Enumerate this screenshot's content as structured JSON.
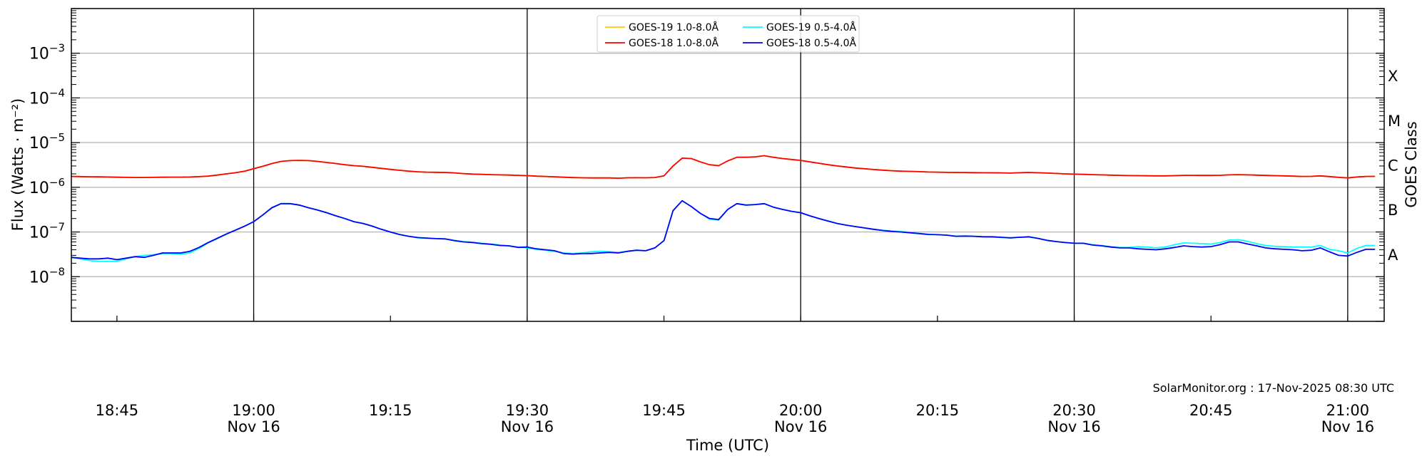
{
  "chart_data": {
    "type": "line",
    "title": "",
    "xlabel": "Time (UTC)",
    "ylabel": "Flux (Watts · m⁻²)",
    "y2label": "GOES Class",
    "yscale": "log",
    "ylim": [
      1e-09,
      0.01
    ],
    "xlim": [
      "18:40",
      "21:04"
    ],
    "grid": "horizontal at decades; black vertical lines every 30 min",
    "legend_placement": "top-center",
    "y_ticks": [
      {
        "value": 0.001,
        "label": "10",
        "exp": "−3"
      },
      {
        "value": 0.0001,
        "label": "10",
        "exp": "−4"
      },
      {
        "value": 1e-05,
        "label": "10",
        "exp": "−5"
      },
      {
        "value": 1e-06,
        "label": "10",
        "exp": "−6"
      },
      {
        "value": 1e-07,
        "label": "10",
        "exp": "−7"
      },
      {
        "value": 1e-08,
        "label": "10",
        "exp": "−8"
      }
    ],
    "x_ticks": [
      {
        "time": "18:45",
        "label": "18:45",
        "sub": ""
      },
      {
        "time": "19:00",
        "label": "19:00",
        "sub": "Nov 16"
      },
      {
        "time": "19:15",
        "label": "19:15",
        "sub": ""
      },
      {
        "time": "19:30",
        "label": "19:30",
        "sub": "Nov 16"
      },
      {
        "time": "19:45",
        "label": "19:45",
        "sub": ""
      },
      {
        "time": "20:00",
        "label": "20:00",
        "sub": "Nov 16"
      },
      {
        "time": "20:15",
        "label": "20:15",
        "sub": ""
      },
      {
        "time": "20:30",
        "label": "20:30",
        "sub": "Nov 16"
      },
      {
        "time": "20:45",
        "label": "20:45",
        "sub": ""
      },
      {
        "time": "21:00",
        "label": "21:00",
        "sub": "Nov 16"
      }
    ],
    "class_labels": [
      {
        "label": "X",
        "lo": 0.0001,
        "hi": 0.001
      },
      {
        "label": "M",
        "lo": 1e-05,
        "hi": 0.0001
      },
      {
        "label": "C",
        "lo": 1e-06,
        "hi": 1e-05
      },
      {
        "label": "B",
        "lo": 1e-07,
        "hi": 1e-06
      },
      {
        "label": "A",
        "lo": 1e-08,
        "hi": 1e-07
      }
    ],
    "annotation": "SolarMonitor.org : 17-Nov-2025 08:30 UTC",
    "x": [
      "18:40",
      "18:41",
      "18:42",
      "18:43",
      "18:44",
      "18:45",
      "18:46",
      "18:47",
      "18:48",
      "18:49",
      "18:50",
      "18:51",
      "18:52",
      "18:53",
      "18:54",
      "18:55",
      "18:56",
      "18:57",
      "18:58",
      "18:59",
      "19:00",
      "19:01",
      "19:02",
      "19:03",
      "19:04",
      "19:05",
      "19:06",
      "19:07",
      "19:08",
      "19:09",
      "19:10",
      "19:11",
      "19:12",
      "19:13",
      "19:14",
      "19:15",
      "19:16",
      "19:17",
      "19:18",
      "19:19",
      "19:20",
      "19:21",
      "19:22",
      "19:23",
      "19:24",
      "19:25",
      "19:26",
      "19:27",
      "19:28",
      "19:29",
      "19:30",
      "19:31",
      "19:32",
      "19:33",
      "19:34",
      "19:35",
      "19:36",
      "19:37",
      "19:38",
      "19:39",
      "19:40",
      "19:41",
      "19:42",
      "19:43",
      "19:44",
      "19:45",
      "19:46",
      "19:47",
      "19:48",
      "19:49",
      "19:50",
      "19:51",
      "19:52",
      "19:53",
      "19:54",
      "19:55",
      "19:56",
      "19:57",
      "19:58",
      "19:59",
      "20:00",
      "20:01",
      "20:02",
      "20:03",
      "20:04",
      "20:05",
      "20:06",
      "20:07",
      "20:08",
      "20:09",
      "20:10",
      "20:11",
      "20:12",
      "20:13",
      "20:14",
      "20:15",
      "20:16",
      "20:17",
      "20:18",
      "20:19",
      "20:20",
      "20:21",
      "20:22",
      "20:23",
      "20:24",
      "20:25",
      "20:26",
      "20:27",
      "20:28",
      "20:29",
      "20:30",
      "20:31",
      "20:32",
      "20:33",
      "20:34",
      "20:35",
      "20:36",
      "20:37",
      "20:38",
      "20:39",
      "20:40",
      "20:41",
      "20:42",
      "20:43",
      "20:44",
      "20:45",
      "20:46",
      "20:47",
      "20:48",
      "20:49",
      "20:50",
      "20:51",
      "20:52",
      "20:53",
      "20:54",
      "20:55",
      "20:56",
      "20:57",
      "20:58",
      "20:59",
      "21:00",
      "21:01",
      "21:02",
      "21:03"
    ],
    "series": [
      {
        "name": "GOES-19 1.0-8.0Å",
        "color": "#ffcc00",
        "values": [
          1.75e-06,
          1.74e-06,
          1.72e-06,
          1.71e-06,
          1.7e-06,
          1.68e-06,
          1.67e-06,
          1.66e-06,
          1.66e-06,
          1.67e-06,
          1.68e-06,
          1.69e-06,
          1.69e-06,
          1.7e-06,
          1.73e-06,
          1.78e-06,
          1.88e-06,
          2e-06,
          2.12e-06,
          2.3e-06,
          2.6e-06,
          2.95e-06,
          3.4e-06,
          3.8e-06,
          3.95e-06,
          4e-06,
          3.95e-06,
          3.8e-06,
          3.6e-06,
          3.4e-06,
          3.2e-06,
          3.05e-06,
          2.95e-06,
          2.8e-06,
          2.65e-06,
          2.52e-06,
          2.4e-06,
          2.3e-06,
          2.22e-06,
          2.18e-06,
          2.17e-06,
          2.15e-06,
          2.1e-06,
          2.03e-06,
          1.98e-06,
          1.95e-06,
          1.92e-06,
          1.9e-06,
          1.88e-06,
          1.85e-06,
          1.82e-06,
          1.78e-06,
          1.75e-06,
          1.72e-06,
          1.68e-06,
          1.65e-06,
          1.63e-06,
          1.62e-06,
          1.62e-06,
          1.62e-06,
          1.6e-06,
          1.63e-06,
          1.64e-06,
          1.63e-06,
          1.66e-06,
          1.8e-06,
          3e-06,
          4.5e-06,
          4.4e-06,
          3.7e-06,
          3.2e-06,
          3.05e-06,
          3.9e-06,
          4.7e-06,
          4.7e-06,
          4.8e-06,
          5.1e-06,
          4.7e-06,
          4.4e-06,
          4.2e-06,
          4e-06,
          3.7e-06,
          3.45e-06,
          3.2e-06,
          3e-06,
          2.85e-06,
          2.7e-06,
          2.6e-06,
          2.5e-06,
          2.42e-06,
          2.35e-06,
          2.3e-06,
          2.27e-06,
          2.24e-06,
          2.2e-06,
          2.18e-06,
          2.16e-06,
          2.15e-06,
          2.14e-06,
          2.13e-06,
          2.12e-06,
          2.11e-06,
          2.1e-06,
          2.08e-06,
          2.12e-06,
          2.15e-06,
          2.12e-06,
          2.08e-06,
          2.04e-06,
          2e-06,
          1.97e-06,
          1.95e-06,
          1.92e-06,
          1.9e-06,
          1.87e-06,
          1.85e-06,
          1.83e-06,
          1.82e-06,
          1.81e-06,
          1.8e-06,
          1.8e-06,
          1.82e-06,
          1.85e-06,
          1.85e-06,
          1.84e-06,
          1.84e-06,
          1.86e-06,
          1.9e-06,
          1.92e-06,
          1.9e-06,
          1.87e-06,
          1.84e-06,
          1.82e-06,
          1.8e-06,
          1.78e-06,
          1.75e-06,
          1.76e-06,
          1.8e-06,
          1.74e-06,
          1.67e-06,
          1.62e-06,
          1.7e-06,
          1.75e-06,
          1.76e-06
        ]
      },
      {
        "name": "GOES-19 0.5-4.0Å",
        "color": "#00ffff",
        "values": [
          2.7e-08,
          2.5e-08,
          2.3e-08,
          2.2e-08,
          2.2e-08,
          2.2e-08,
          2.5e-08,
          2.8e-08,
          3e-08,
          3.1e-08,
          3.3e-08,
          3.3e-08,
          3.2e-08,
          3.4e-08,
          4.3e-08,
          5.7e-08,
          7.1e-08,
          8.9e-08,
          1.1e-07,
          1.35e-07,
          1.7e-07,
          2.4e-07,
          3.5e-07,
          4.3e-07,
          4.3e-07,
          4e-07,
          3.5e-07,
          3.1e-07,
          2.7e-07,
          2.3e-07,
          2e-07,
          1.7e-07,
          1.55e-07,
          1.35e-07,
          1.15e-07,
          1e-07,
          8.8e-08,
          8e-08,
          7.4e-08,
          7.2e-08,
          7.1e-08,
          7e-08,
          6.5e-08,
          6.1e-08,
          5.9e-08,
          5.6e-08,
          5.4e-08,
          5.1e-08,
          4.9e-08,
          4.6e-08,
          4.4e-08,
          4.1e-08,
          3.9e-08,
          3.7e-08,
          3.4e-08,
          3.3e-08,
          3.4e-08,
          3.6e-08,
          3.7e-08,
          3.6e-08,
          3.5e-08,
          3.7e-08,
          3.9e-08,
          3.8e-08,
          4.4e-08,
          6.4e-08,
          3e-07,
          5e-07,
          3.7e-07,
          2.6e-07,
          1.95e-07,
          1.85e-07,
          3.2e-07,
          4.3e-07,
          4e-07,
          4.1e-07,
          4.3e-07,
          3.6e-07,
          3.2e-07,
          2.9e-07,
          2.7e-07,
          2.3e-07,
          2e-07,
          1.75e-07,
          1.55e-07,
          1.42e-07,
          1.32e-07,
          1.23e-07,
          1.15e-07,
          1.09e-07,
          1.05e-07,
          1.02e-07,
          9.8e-08,
          9.3e-08,
          8.9e-08,
          8.7e-08,
          8.5e-08,
          8.1e-08,
          8.1e-08,
          8e-08,
          7.8e-08,
          7.7e-08,
          7.5e-08,
          7.4e-08,
          7.6e-08,
          7.7e-08,
          7.2e-08,
          6.5e-08,
          6.1e-08,
          5.8e-08,
          5.6e-08,
          5.6e-08,
          5.2e-08,
          5e-08,
          4.7e-08,
          4.5e-08,
          4.5e-08,
          4.7e-08,
          4.6e-08,
          4.4e-08,
          4.6e-08,
          5.2e-08,
          5.7e-08,
          5.6e-08,
          5.5e-08,
          5.4e-08,
          5.8e-08,
          6.6e-08,
          6.7e-08,
          6.2e-08,
          5.5e-08,
          5e-08,
          4.8e-08,
          4.7e-08,
          4.6e-08,
          4.6e-08,
          4.6e-08,
          5e-08,
          4.1e-08,
          3.8e-08,
          3.4e-08,
          4.3e-08,
          5e-08,
          5e-08
        ]
      },
      {
        "name": "GOES-18 1.0-8.0Å",
        "color": "#ff0000",
        "values": [
          1.75e-06,
          1.74e-06,
          1.72e-06,
          1.71e-06,
          1.7e-06,
          1.68e-06,
          1.67e-06,
          1.66e-06,
          1.66e-06,
          1.67e-06,
          1.68e-06,
          1.69e-06,
          1.69e-06,
          1.7e-06,
          1.73e-06,
          1.78e-06,
          1.88e-06,
          2e-06,
          2.12e-06,
          2.3e-06,
          2.6e-06,
          2.95e-06,
          3.4e-06,
          3.8e-06,
          3.95e-06,
          4e-06,
          3.95e-06,
          3.8e-06,
          3.6e-06,
          3.4e-06,
          3.2e-06,
          3.05e-06,
          2.95e-06,
          2.8e-06,
          2.65e-06,
          2.52e-06,
          2.4e-06,
          2.3e-06,
          2.22e-06,
          2.18e-06,
          2.17e-06,
          2.15e-06,
          2.1e-06,
          2.03e-06,
          1.98e-06,
          1.95e-06,
          1.92e-06,
          1.9e-06,
          1.88e-06,
          1.85e-06,
          1.82e-06,
          1.78e-06,
          1.75e-06,
          1.72e-06,
          1.68e-06,
          1.65e-06,
          1.63e-06,
          1.62e-06,
          1.62e-06,
          1.62e-06,
          1.6e-06,
          1.63e-06,
          1.64e-06,
          1.63e-06,
          1.66e-06,
          1.8e-06,
          3e-06,
          4.5e-06,
          4.4e-06,
          3.7e-06,
          3.2e-06,
          3.05e-06,
          3.9e-06,
          4.7e-06,
          4.7e-06,
          4.8e-06,
          5.1e-06,
          4.7e-06,
          4.4e-06,
          4.2e-06,
          4e-06,
          3.7e-06,
          3.45e-06,
          3.2e-06,
          3e-06,
          2.85e-06,
          2.7e-06,
          2.6e-06,
          2.5e-06,
          2.42e-06,
          2.35e-06,
          2.3e-06,
          2.27e-06,
          2.24e-06,
          2.2e-06,
          2.18e-06,
          2.16e-06,
          2.15e-06,
          2.14e-06,
          2.13e-06,
          2.12e-06,
          2.11e-06,
          2.1e-06,
          2.08e-06,
          2.12e-06,
          2.15e-06,
          2.12e-06,
          2.08e-06,
          2.04e-06,
          2e-06,
          1.97e-06,
          1.95e-06,
          1.92e-06,
          1.9e-06,
          1.87e-06,
          1.85e-06,
          1.83e-06,
          1.82e-06,
          1.81e-06,
          1.8e-06,
          1.8e-06,
          1.82e-06,
          1.85e-06,
          1.85e-06,
          1.84e-06,
          1.84e-06,
          1.86e-06,
          1.9e-06,
          1.92e-06,
          1.9e-06,
          1.87e-06,
          1.84e-06,
          1.82e-06,
          1.8e-06,
          1.78e-06,
          1.75e-06,
          1.76e-06,
          1.8e-06,
          1.74e-06,
          1.67e-06,
          1.62e-06,
          1.7e-06,
          1.75e-06,
          1.76e-06
        ]
      },
      {
        "name": "GOES-18 0.5-4.0Å",
        "color": "#0000ff",
        "values": [
          2.7e-08,
          2.6e-08,
          2.5e-08,
          2.5e-08,
          2.6e-08,
          2.4e-08,
          2.6e-08,
          2.8e-08,
          2.7e-08,
          3e-08,
          3.4e-08,
          3.4e-08,
          3.4e-08,
          3.7e-08,
          4.5e-08,
          5.8e-08,
          7.2e-08,
          9e-08,
          1.1e-07,
          1.35e-07,
          1.7e-07,
          2.4e-07,
          3.5e-07,
          4.3e-07,
          4.3e-07,
          4e-07,
          3.5e-07,
          3.1e-07,
          2.7e-07,
          2.3e-07,
          2e-07,
          1.7e-07,
          1.55e-07,
          1.35e-07,
          1.15e-07,
          1e-07,
          8.8e-08,
          8e-08,
          7.5e-08,
          7.3e-08,
          7.1e-08,
          7e-08,
          6.4e-08,
          6e-08,
          5.8e-08,
          5.5e-08,
          5.3e-08,
          5e-08,
          4.9e-08,
          4.5e-08,
          4.6e-08,
          4.2e-08,
          4e-08,
          3.8e-08,
          3.3e-08,
          3.2e-08,
          3.3e-08,
          3.3e-08,
          3.4e-08,
          3.5e-08,
          3.4e-08,
          3.7e-08,
          3.9e-08,
          3.8e-08,
          4.4e-08,
          6.4e-08,
          3e-07,
          5e-07,
          3.7e-07,
          2.6e-07,
          2e-07,
          1.9e-07,
          3.2e-07,
          4.3e-07,
          4e-07,
          4.1e-07,
          4.3e-07,
          3.6e-07,
          3.2e-07,
          2.9e-07,
          2.7e-07,
          2.3e-07,
          2e-07,
          1.75e-07,
          1.55e-07,
          1.42e-07,
          1.32e-07,
          1.23e-07,
          1.15e-07,
          1.08e-07,
          1.03e-07,
          1e-07,
          9.6e-08,
          9.2e-08,
          8.8e-08,
          8.7e-08,
          8.5e-08,
          8e-08,
          8.1e-08,
          8e-08,
          7.8e-08,
          7.8e-08,
          7.6e-08,
          7.4e-08,
          7.6e-08,
          7.8e-08,
          7.2e-08,
          6.5e-08,
          6.1e-08,
          5.8e-08,
          5.6e-08,
          5.6e-08,
          5.1e-08,
          4.9e-08,
          4.6e-08,
          4.4e-08,
          4.4e-08,
          4.2e-08,
          4.1e-08,
          4e-08,
          4.2e-08,
          4.5e-08,
          4.9e-08,
          4.7e-08,
          4.6e-08,
          4.7e-08,
          5.2e-08,
          6e-08,
          6e-08,
          5.4e-08,
          4.9e-08,
          4.4e-08,
          4.2e-08,
          4.1e-08,
          4e-08,
          3.8e-08,
          3.9e-08,
          4.4e-08,
          3.6e-08,
          3e-08,
          2.9e-08,
          3.5e-08,
          4.1e-08,
          4.1e-08
        ]
      }
    ],
    "legend": [
      {
        "label": "GOES-19 1.0-8.0Å",
        "color": "#ffcc00"
      },
      {
        "label": "GOES-19 0.5-4.0Å",
        "color": "#00ffff"
      },
      {
        "label": "GOES-18 1.0-8.0Å",
        "color": "#ff0000"
      },
      {
        "label": "GOES-18 0.5-4.0Å",
        "color": "#0000ff"
      }
    ]
  }
}
